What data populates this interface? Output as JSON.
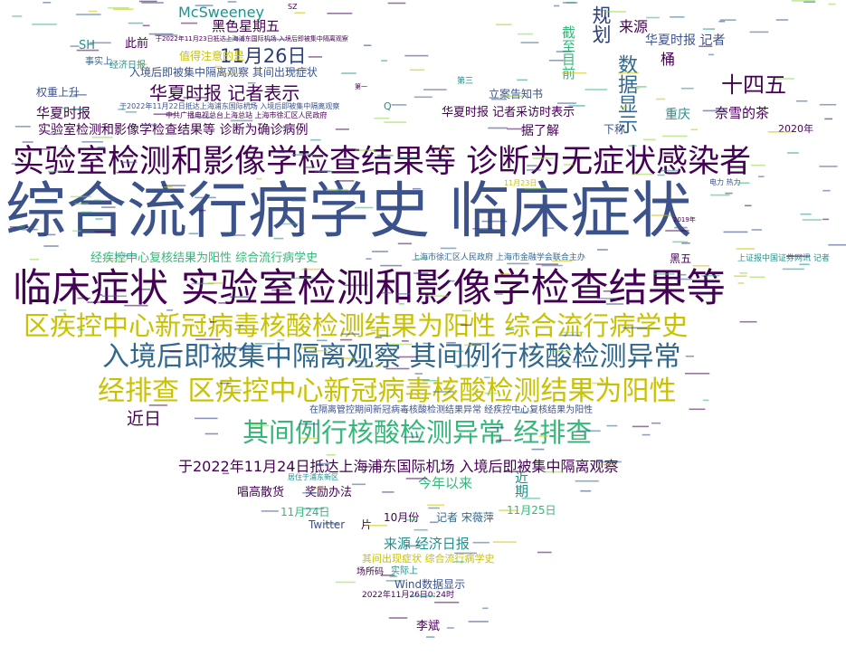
{
  "palette": {
    "dark_purple": "#440154",
    "indigo": "#3b528b",
    "blue": "#31688e",
    "teal": "#21918c",
    "green": "#35b779",
    "lime": "#90d743",
    "yellow": "#c8c200",
    "navy": "#2c3e7a"
  },
  "words": [
    {
      "text": "综合流行病学史 临床症状",
      "color": "indigo"
    },
    {
      "text": "临床症状 实验室检测和影像学检查结果等",
      "color": "dark_purple"
    },
    {
      "text": "实验室检测和影像学检查结果等 诊断为无症状感染者",
      "color": "dark_purple"
    },
    {
      "text": "区疾控中心新冠病毒核酸检测结果为阳性 综合流行病学史",
      "color": "yellow"
    },
    {
      "text": "入境后即被集中隔离观察 其间例行核酸检测异常",
      "color": "blue"
    },
    {
      "text": "经排查 区疾控中心新冠病毒核酸检测结果为阳性",
      "color": "yellow"
    },
    {
      "text": "其间例行核酸检测异常 经排查",
      "color": "green"
    },
    {
      "text": "于2022年11月24日抵达上海浦东国际机场 入境后即被集中隔离观察",
      "color": "dark_purple"
    },
    {
      "text": "11月26日",
      "color": "navy"
    },
    {
      "text": "华夏时报 记者表示",
      "color": "dark_purple"
    },
    {
      "text": "十四五",
      "color": "dark_purple"
    },
    {
      "text": "McSweeney",
      "color": "teal"
    },
    {
      "text": "黑色星期五",
      "color": "dark_purple"
    },
    {
      "text": "规划",
      "color": "navy"
    },
    {
      "text": "来源",
      "color": "dark_purple"
    },
    {
      "text": "数据显示",
      "color": "blue"
    },
    {
      "text": "截至目前",
      "color": "green"
    },
    {
      "text": "华夏时报 记者",
      "color": "indigo"
    },
    {
      "text": "桶",
      "color": "dark_purple"
    },
    {
      "text": "重庆",
      "color": "teal"
    },
    {
      "text": "奈雪的茶",
      "color": "dark_purple"
    },
    {
      "text": "值得注意的是",
      "color": "yellow"
    },
    {
      "text": "入境后即被集中隔离观察 其间出现症状",
      "color": "indigo"
    },
    {
      "text": "此前",
      "color": "dark_purple"
    },
    {
      "text": "SH",
      "color": "teal"
    },
    {
      "text": "经济日报",
      "color": "teal"
    },
    {
      "text": "事实上",
      "color": "blue"
    },
    {
      "text": "权重上升",
      "color": "indigo"
    },
    {
      "text": "华夏时报",
      "color": "dark_purple"
    },
    {
      "text": "实验室检测和影像学检查结果等 诊断为确诊病例",
      "color": "dark_purple"
    },
    {
      "text": "华夏时报 记者采访时表示",
      "color": "dark_purple"
    },
    {
      "text": "立案告知书",
      "color": "indigo"
    },
    {
      "text": "据了解",
      "color": "dark_purple"
    },
    {
      "text": "下称",
      "color": "indigo"
    },
    {
      "text": "2020年",
      "color": "dark_purple"
    },
    {
      "text": "经疾控中心复核结果为阳性 综合流行病学史",
      "color": "green"
    },
    {
      "text": "上海市徐汇区人民政府 上海市金融学会联合主办",
      "color": "blue"
    },
    {
      "text": "黑五",
      "color": "dark_purple"
    },
    {
      "text": "上证报中国证券网讯 记者",
      "color": "teal"
    },
    {
      "text": "近日",
      "color": "dark_purple"
    },
    {
      "text": "在隔离管控期间新冠病毒核酸检测结果异常 经疾控中心复核结果为阳性",
      "color": "indigo"
    },
    {
      "text": "今年以来",
      "color": "green"
    },
    {
      "text": "唱高散货",
      "color": "dark_purple"
    },
    {
      "text": "奖励办法",
      "color": "dark_purple"
    },
    {
      "text": "近期",
      "color": "teal"
    },
    {
      "text": "11月24日",
      "color": "green"
    },
    {
      "text": "10月份",
      "color": "dark_purple"
    },
    {
      "text": "记者 宋薇萍",
      "color": "blue"
    },
    {
      "text": "11月25日",
      "color": "green"
    },
    {
      "text": "Twitter",
      "color": "indigo"
    },
    {
      "text": "片",
      "color": "dark_purple"
    },
    {
      "text": "来源 经济日报",
      "color": "teal"
    },
    {
      "text": "其间出现症状 综合流行病学史",
      "color": "yellow"
    },
    {
      "text": "场所码",
      "color": "dark_purple"
    },
    {
      "text": "实际上",
      "color": "teal"
    },
    {
      "text": "Wind数据显示",
      "color": "indigo"
    },
    {
      "text": "2022年11月26日0:24时",
      "color": "dark_purple"
    },
    {
      "text": "李斌",
      "color": "dark_purple"
    },
    {
      "text": "于2022年11月23日抵达上海浦东国际机场 入境后即被集中隔离观察",
      "color": "dark_purple"
    },
    {
      "text": "于2022年11月22日抵达上海浦东国际机场 入境后即被集中隔离观察",
      "color": "indigo"
    },
    {
      "text": "中共广播电视总台上海总站 上海市徐汇区人民政府",
      "color": "dark_purple"
    },
    {
      "text": "居住于浦东新区",
      "color": "teal"
    },
    {
      "text": "11月23日",
      "color": "yellow"
    },
    {
      "text": "电力 热力",
      "color": "indigo"
    },
    {
      "text": "2019年",
      "color": "dark_purple"
    },
    {
      "text": "第三",
      "color": "teal"
    },
    {
      "text": "第一",
      "color": "dark_purple"
    },
    {
      "text": "SZ",
      "color": "dark_purple"
    },
    {
      "text": "Q",
      "color": "teal"
    }
  ]
}
